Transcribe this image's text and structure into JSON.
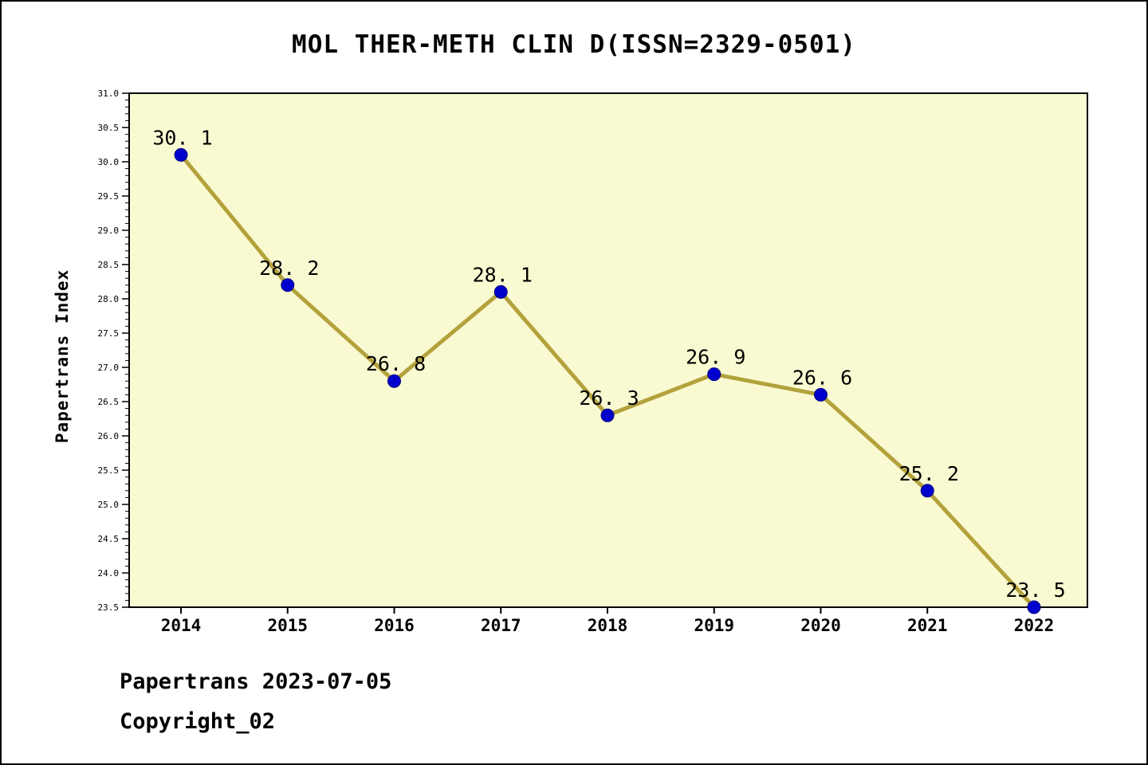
{
  "title": "MOL THER-METH CLIN D(ISSN=2329-0501)",
  "footer": {
    "line1": "Papertrans 2023-07-05",
    "line2": "Copyright_02"
  },
  "chart_data": {
    "type": "line",
    "title": "MOL THER-METH CLIN D(ISSN=2329-0501)",
    "xlabel": "",
    "ylabel": "Papertrans Index",
    "x": [
      2014,
      2015,
      2016,
      2017,
      2018,
      2019,
      2020,
      2021,
      2022
    ],
    "series": [
      {
        "name": "Papertrans Index",
        "values": [
          30.1,
          28.2,
          26.8,
          28.1,
          26.3,
          26.9,
          26.6,
          25.2,
          23.5
        ]
      }
    ],
    "point_labels": [
      "30. 1",
      "28. 2",
      "26. 8",
      "28. 1",
      "26. 3",
      "26. 9",
      "26. 6",
      "25. 2",
      "23. 5"
    ],
    "ylim": [
      23.5,
      31.0
    ],
    "ytick_major_step": 0.5,
    "ytick_minor_step": 0.1,
    "grid": false,
    "legend": "none",
    "colors": {
      "plot_background": "#fafad2",
      "line": "#b3a23c",
      "marker": "#0000cd",
      "marker_edge": "#000080",
      "axis": "#000000",
      "text": "#000000"
    }
  }
}
